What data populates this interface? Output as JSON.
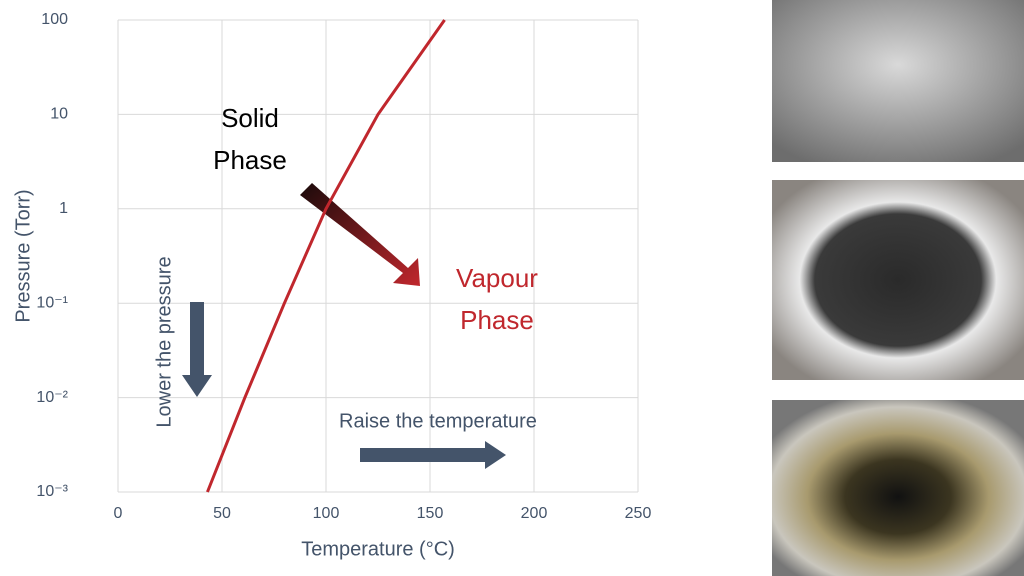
{
  "chart_data": {
    "type": "line",
    "log_y": true,
    "grid": true,
    "xlabel": "Temperature (°C)",
    "ylabel": "Pressure (Torr)",
    "x": [
      43,
      61,
      80,
      100,
      125,
      157
    ],
    "series": [
      {
        "color": "#c0272d",
        "values": [
          0.001,
          0.01,
          0.1,
          1,
          10,
          100
        ]
      }
    ],
    "xlim": [
      0,
      250
    ],
    "xticks": [
      0,
      50,
      100,
      150,
      200,
      250
    ],
    "ylim": [
      0.001,
      100
    ],
    "yticks": [
      {
        "value": 0.001,
        "label": "10⁻³"
      },
      {
        "value": 0.01,
        "label": "10⁻²"
      },
      {
        "value": 0.1,
        "label": "10⁻¹"
      },
      1,
      10,
      100
    ],
    "annotations": {
      "solid_phase": [
        "Solid",
        "Phase"
      ],
      "vapour_phase": [
        "Vapour",
        "Phase"
      ],
      "lower_pressure": "Lower the pressure",
      "raise_temperature": "Raise the temperature"
    }
  }
}
